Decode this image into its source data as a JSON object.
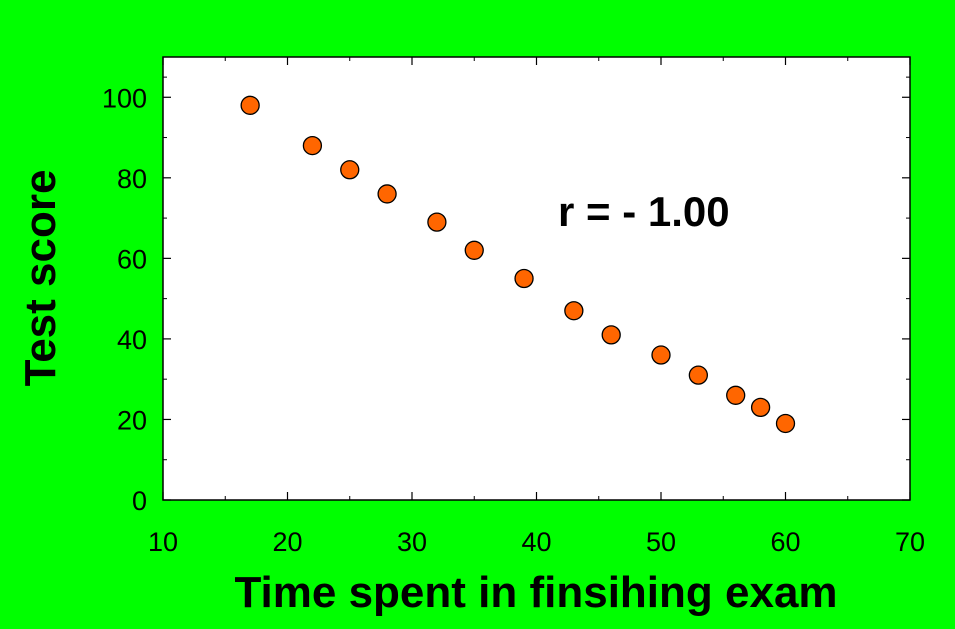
{
  "chart_data": {
    "type": "scatter",
    "xlabel": "Time spent in finsihing exam",
    "ylabel": "Test score",
    "xlim": [
      10,
      70
    ],
    "ylim": [
      0,
      110
    ],
    "x_ticks": [
      10,
      20,
      30,
      40,
      50,
      60,
      70
    ],
    "y_ticks": [
      0,
      20,
      40,
      60,
      80,
      100
    ],
    "annotation": "r = - 1.00",
    "grid": false,
    "colors": {
      "background": "#00FF00",
      "plot_area": "#FFFFFF",
      "marker_fill": "#FF6600",
      "marker_edge": "#000000"
    },
    "series": [
      {
        "points": [
          {
            "x": 17,
            "y": 98
          },
          {
            "x": 22,
            "y": 88
          },
          {
            "x": 25,
            "y": 82
          },
          {
            "x": 28,
            "y": 76
          },
          {
            "x": 32,
            "y": 69
          },
          {
            "x": 35,
            "y": 62
          },
          {
            "x": 39,
            "y": 55
          },
          {
            "x": 43,
            "y": 47
          },
          {
            "x": 46,
            "y": 41
          },
          {
            "x": 50,
            "y": 36
          },
          {
            "x": 53,
            "y": 31
          },
          {
            "x": 56,
            "y": 26
          },
          {
            "x": 58,
            "y": 23
          },
          {
            "x": 60,
            "y": 19
          }
        ]
      }
    ]
  }
}
